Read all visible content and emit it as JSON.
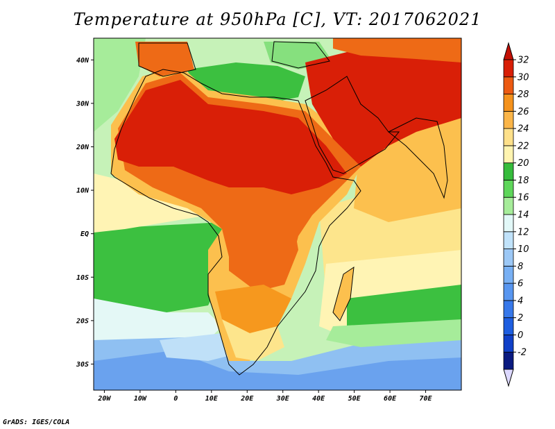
{
  "title": "Temperature at 950hPa [C], VT: 2017062021",
  "footer": "GrADS: IGES/COLA",
  "map": {
    "projection": "latlon",
    "lon_range": [
      -23,
      80
    ],
    "lat_range": [
      -36,
      45
    ],
    "lon_ticks": [
      {
        "lon": -20,
        "label": "20W"
      },
      {
        "lon": -10,
        "label": "10W"
      },
      {
        "lon": 0,
        "label": "0"
      },
      {
        "lon": 10,
        "label": "10E"
      },
      {
        "lon": 20,
        "label": "20E"
      },
      {
        "lon": 30,
        "label": "30E"
      },
      {
        "lon": 40,
        "label": "40E"
      },
      {
        "lon": 50,
        "label": "50E"
      },
      {
        "lon": 60,
        "label": "60E"
      },
      {
        "lon": 70,
        "label": "70E"
      }
    ],
    "lat_ticks": [
      {
        "lat": 40,
        "label": "40N"
      },
      {
        "lat": 30,
        "label": "30N"
      },
      {
        "lat": 20,
        "label": "20N"
      },
      {
        "lat": 10,
        "label": "10N"
      },
      {
        "lat": 0,
        "label": "EQ"
      },
      {
        "lat": -10,
        "label": "10S"
      },
      {
        "lat": -20,
        "label": "20S"
      },
      {
        "lat": -30,
        "label": "30S"
      }
    ]
  },
  "colorbar": {
    "levels": [
      {
        "value": "-2",
        "color": "#0a1a80"
      },
      {
        "value": "0",
        "color": "#1040c8"
      },
      {
        "value": "2",
        "color": "#1e5ee0"
      },
      {
        "value": "4",
        "color": "#3778ea"
      },
      {
        "value": "6",
        "color": "#5896f0"
      },
      {
        "value": "8",
        "color": "#78b0f4"
      },
      {
        "value": "10",
        "color": "#9cc8f6"
      },
      {
        "value": "12",
        "color": "#c0e2fa"
      },
      {
        "value": "14",
        "color": "#e2f8f8"
      },
      {
        "value": "16",
        "color": "#a6ec9a"
      },
      {
        "value": "18",
        "color": "#5ed65a"
      },
      {
        "value": "20",
        "color": "#36bc3c"
      },
      {
        "value": "22",
        "color": "#fff4b0"
      },
      {
        "value": "24",
        "color": "#fee08a"
      },
      {
        "value": "26",
        "color": "#fbb548"
      },
      {
        "value": "28",
        "color": "#f5921c"
      },
      {
        "value": "30",
        "color": "#ec5a12"
      },
      {
        "value": "32",
        "color": "#d81e06"
      }
    ],
    "top_color": "#c41004",
    "bottom_color": "#dcd8ff"
  },
  "colors": {
    "hot": "#d91f07",
    "warm_orange": "#ee6a16",
    "orange": "#f6981e",
    "light_orange": "#fcc04e",
    "pale_yellow": "#fde58c",
    "cream": "#fff4b4",
    "green": "#3cc040",
    "light_green": "#86e07e",
    "pale_green": "#c6f2b8",
    "cyan_white": "#e4f8f6",
    "pale_blue": "#bfe0f8",
    "light_blue": "#8fc0f2",
    "blue": "#6aa2ee"
  }
}
